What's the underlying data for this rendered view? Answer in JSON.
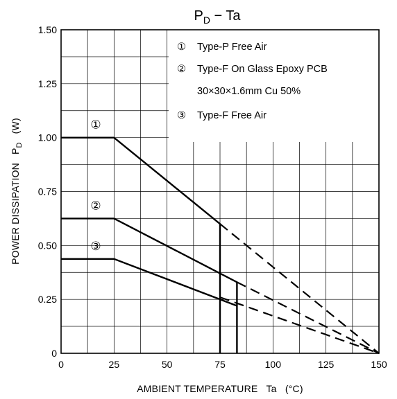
{
  "chart_data": {
    "type": "line",
    "title": "P",
    "title_subscript": "D",
    "title_suffix": " − Ta",
    "xlabel": "AMBIENT TEMPERATURE   Ta   (°C)",
    "ylabel_main": "POWER DISSIPATION",
    "ylabel_symbol": "P",
    "ylabel_symbol_subscript": "D",
    "ylabel_unit": "(W)",
    "xlim": [
      0,
      150
    ],
    "ylim": [
      0,
      1.5
    ],
    "x_ticks": [
      "0",
      "25",
      "50",
      "75",
      "100",
      "125",
      "150"
    ],
    "y_ticks": [
      "0",
      "0.25",
      "0.50",
      "0.75",
      "1.00",
      "1.25",
      "1.50"
    ],
    "grid": true,
    "legend_placement": "top-right",
    "legend": [
      {
        "marker": "①",
        "lines": [
          "Type-P Free Air"
        ]
      },
      {
        "marker": "②",
        "lines": [
          "Type-F On Glass Epoxy PCB",
          "30×30×1.6mm Cu 50%"
        ]
      },
      {
        "marker": "③",
        "lines": [
          "Type-F Free Air"
        ]
      }
    ],
    "series": [
      {
        "marker": "①",
        "solid": [
          [
            0,
            1.0
          ],
          [
            25,
            1.0
          ],
          [
            75,
            0.6
          ],
          [
            75,
            0
          ]
        ],
        "dashed": [
          [
            75,
            0.6
          ],
          [
            150,
            0
          ]
        ]
      },
      {
        "marker": "②",
        "solid": [
          [
            0,
            0.625
          ],
          [
            25,
            0.625
          ],
          [
            83,
            0.33
          ],
          [
            83,
            0
          ]
        ],
        "dashed": [
          [
            83,
            0.33
          ],
          [
            150,
            0
          ]
        ]
      },
      {
        "marker": "③",
        "solid": [
          [
            0,
            0.4375
          ],
          [
            25,
            0.4375
          ],
          [
            83,
            0.22
          ]
        ],
        "dashed": [
          [
            75,
            0.26
          ],
          [
            150,
            0
          ]
        ]
      }
    ]
  }
}
